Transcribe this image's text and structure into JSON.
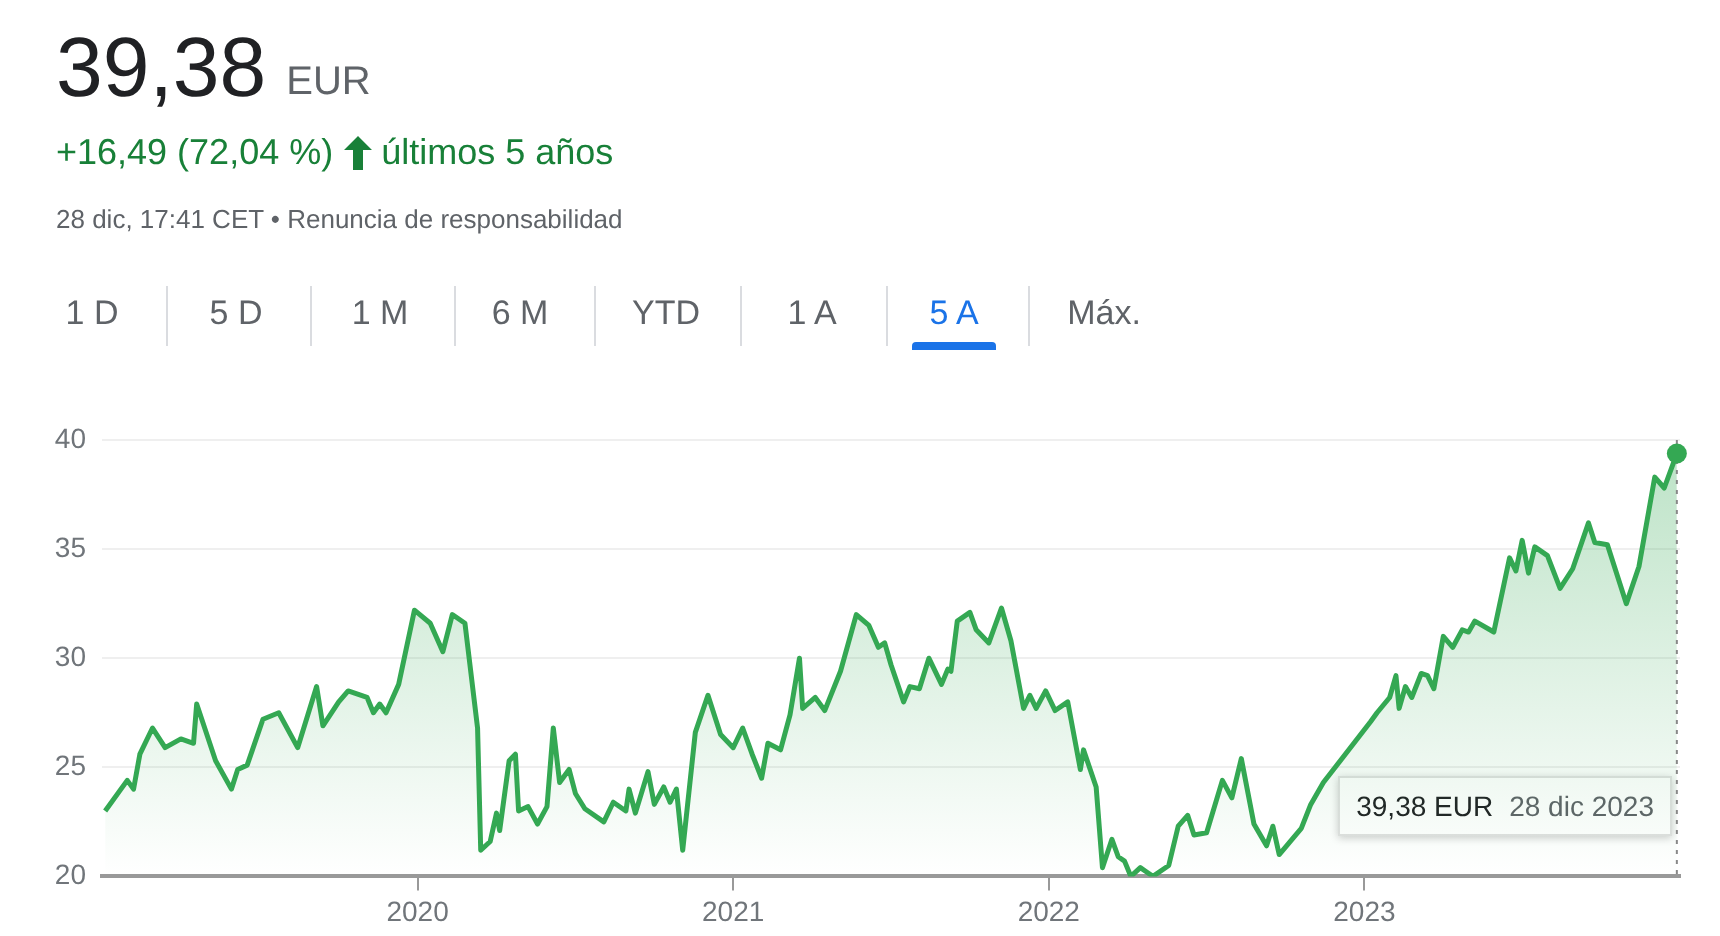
{
  "chart_data": {
    "type": "area",
    "title": "39,38",
    "subtitle": "+16,49 (72,04 %)",
    "annotations": [
      "EUR",
      "últimos 5 años",
      "28 dic, 17:41 CET • Renuncia de responsabilidad",
      "1 D",
      "5 D",
      "1 M",
      "6 M",
      "YTD",
      "1 A",
      "5 A",
      "Máx.",
      "39,38 EUR",
      "28 dic 2023"
    ],
    "x": [
      2019.01,
      2019.08,
      2019.1,
      2019.12,
      2019.16,
      2019.2,
      2019.25,
      2019.29,
      2019.3,
      2019.36,
      2019.41,
      2019.43,
      2019.46,
      2019.51,
      2019.56,
      2019.62,
      2019.68,
      2019.7,
      2019.75,
      2019.78,
      2019.84,
      2019.86,
      2019.88,
      2019.9,
      2019.94,
      2019.99,
      2020.04,
      2020.08,
      2020.11,
      2020.15,
      2020.19,
      2020.2,
      2020.23,
      2020.25,
      2020.26,
      2020.29,
      2020.31,
      2020.32,
      2020.35,
      2020.38,
      2020.41,
      2020.43,
      2020.45,
      2020.48,
      2020.5,
      2020.53,
      2020.59,
      2020.62,
      2020.66,
      2020.67,
      2020.69,
      2020.73,
      2020.75,
      2020.78,
      2020.8,
      2020.82,
      2020.84,
      2020.88,
      2020.92,
      2020.96,
      2021.0,
      2021.03,
      2021.06,
      2021.09,
      2021.11,
      2021.15,
      2021.18,
      2021.21,
      2021.22,
      2021.26,
      2021.29,
      2021.34,
      2021.39,
      2021.43,
      2021.46,
      2021.48,
      2021.5,
      2021.54,
      2021.56,
      2021.59,
      2021.62,
      2021.66,
      2021.68,
      2021.69,
      2021.71,
      2021.75,
      2021.77,
      2021.81,
      2021.85,
      2021.88,
      2021.92,
      2021.94,
      2021.96,
      2021.99,
      2022.02,
      2022.06,
      2022.1,
      2022.11,
      2022.15,
      2022.17,
      2022.2,
      2022.22,
      2022.24,
      2022.26,
      2022.29,
      2022.31,
      2022.33,
      2022.38,
      2022.41,
      2022.44,
      2022.46,
      2022.5,
      2022.55,
      2022.58,
      2022.61,
      2022.65,
      2022.69,
      2022.71,
      2022.73,
      2022.8,
      2022.83,
      2022.87,
      2023.02,
      2023.04,
      2023.08,
      2023.1,
      2023.11,
      2023.13,
      2023.15,
      2023.18,
      2023.2,
      2023.22,
      2023.25,
      2023.28,
      2023.31,
      2023.33,
      2023.35,
      2023.41,
      2023.46,
      2023.48,
      2023.5,
      2023.52,
      2023.54,
      2023.58,
      2023.62,
      2023.66,
      2023.71,
      2023.73,
      2023.77,
      2023.83,
      2023.87,
      2023.92,
      2023.95,
      2023.99
    ],
    "series": [
      {
        "color": "#34a853",
        "values": [
          23.0,
          24.4,
          24.0,
          25.6,
          26.8,
          25.9,
          26.3,
          26.1,
          27.9,
          25.3,
          24.0,
          24.9,
          25.1,
          27.2,
          27.5,
          25.9,
          28.7,
          26.9,
          28.0,
          28.5,
          28.2,
          27.5,
          27.9,
          27.5,
          28.8,
          32.2,
          31.6,
          30.3,
          32.0,
          31.6,
          26.8,
          21.2,
          21.6,
          22.9,
          22.1,
          25.3,
          25.6,
          23.0,
          23.2,
          22.4,
          23.2,
          26.8,
          24.3,
          24.9,
          23.8,
          23.1,
          22.5,
          23.4,
          23.0,
          24.0,
          22.9,
          24.8,
          23.3,
          24.1,
          23.4,
          24.0,
          21.2,
          26.6,
          28.3,
          26.5,
          25.9,
          26.8,
          25.6,
          24.5,
          26.1,
          25.8,
          27.4,
          30.0,
          27.7,
          28.2,
          27.6,
          29.4,
          32.0,
          31.5,
          30.5,
          30.7,
          29.7,
          28.0,
          28.7,
          28.6,
          30.0,
          28.8,
          29.5,
          29.4,
          31.7,
          32.1,
          31.3,
          30.7,
          32.3,
          30.8,
          27.7,
          28.3,
          27.7,
          28.5,
          27.6,
          28.0,
          24.9,
          25.8,
          24.1,
          20.4,
          21.7,
          20.9,
          20.7,
          20.0,
          20.4,
          20.2,
          20.0,
          20.5,
          22.3,
          22.8,
          21.9,
          22.0,
          24.4,
          23.6,
          25.4,
          22.4,
          21.4,
          22.3,
          21.0,
          22.2,
          23.3,
          24.3,
          27.1,
          27.5,
          28.2,
          29.2,
          27.7,
          28.7,
          28.2,
          29.3,
          29.2,
          28.6,
          31.0,
          30.5,
          31.3,
          31.2,
          31.7,
          31.2,
          34.6,
          34.0,
          35.4,
          33.9,
          35.1,
          34.7,
          33.2,
          34.1,
          36.2,
          35.3,
          35.2,
          32.5,
          34.2,
          38.3,
          37.8,
          39.38
        ]
      }
    ],
    "xlim": [
      2019.0,
      2024.0
    ],
    "xticks": [
      2020,
      2021,
      2022,
      2023
    ],
    "ylim": [
      20,
      40
    ],
    "yticks": [
      20,
      25,
      30,
      35,
      40
    ],
    "grid": "y",
    "legend": false,
    "marker": "none",
    "line_style": "solid",
    "ref_lines": [
      {
        "axis": "x",
        "value": 2023.99,
        "line_style": "dotted",
        "color": "#888888"
      }
    ]
  }
}
